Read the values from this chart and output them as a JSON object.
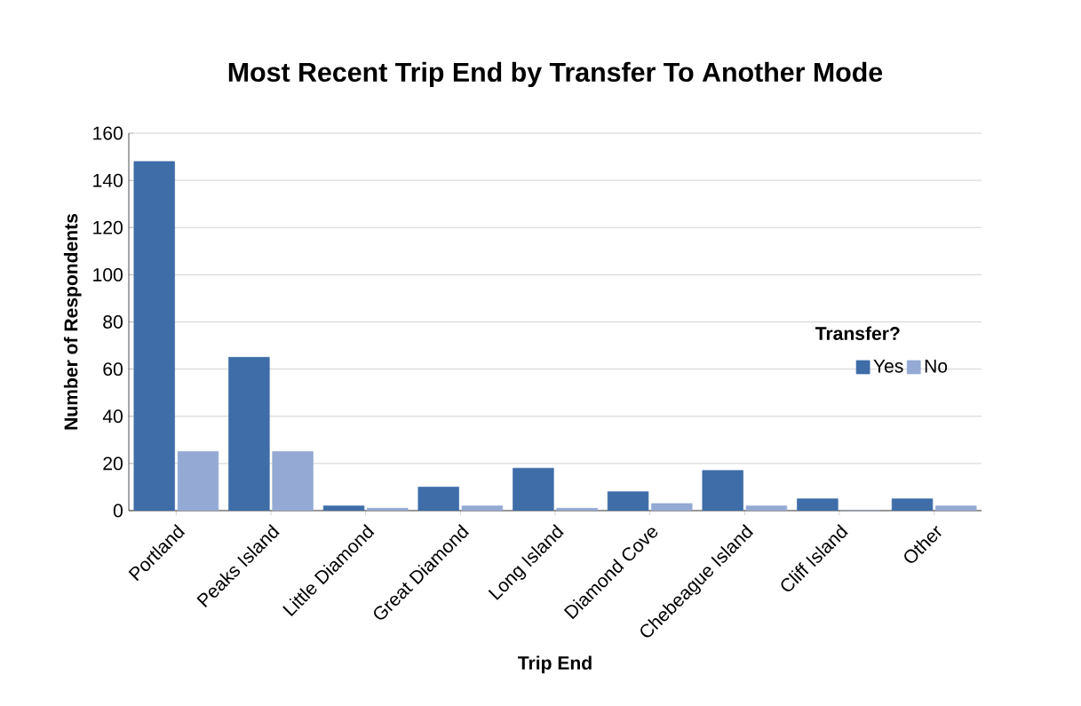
{
  "chart_data": {
    "type": "bar",
    "title": "Most Recent Trip End by Transfer To Another Mode",
    "xlabel": "Trip End",
    "ylabel": "Number of Respondents",
    "legend_title": "Transfer?",
    "categories": [
      "Portland",
      "Peaks Island",
      "Little Diamond",
      "Great Diamond",
      "Long Island",
      "Diamond Cove",
      "Chebeague Island",
      "Cliff Island",
      "Other"
    ],
    "series": [
      {
        "name": "Yes",
        "color": "#3e6da8",
        "values": [
          148,
          65,
          2,
          10,
          18,
          8,
          17,
          5,
          5
        ]
      },
      {
        "name": "No",
        "color": "#94aad4",
        "values": [
          25,
          25,
          1,
          2,
          1,
          3,
          2,
          0,
          2
        ]
      }
    ],
    "ylim": [
      0,
      160
    ],
    "yticks": [
      0,
      20,
      40,
      60,
      80,
      100,
      120,
      140,
      160
    ],
    "grid": "y",
    "legend": "right"
  }
}
